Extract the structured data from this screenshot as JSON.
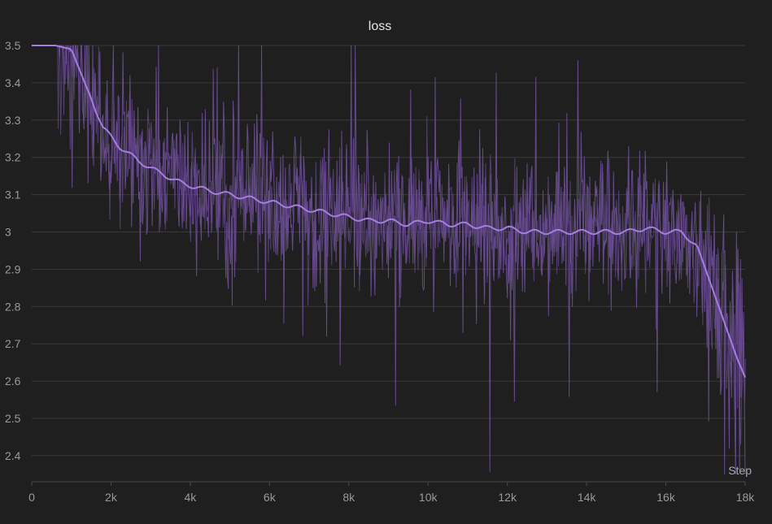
{
  "chart_data": {
    "type": "line",
    "title": "loss",
    "xlabel": "Step",
    "ylabel": "",
    "xlim": [
      0,
      18000
    ],
    "ylim": [
      2.33,
      3.5
    ],
    "x_ticks": [
      0,
      2000,
      4000,
      6000,
      8000,
      10000,
      12000,
      14000,
      16000,
      18000
    ],
    "x_tick_labels": [
      "0",
      "2k",
      "4k",
      "6k",
      "8k",
      "10k",
      "12k",
      "14k",
      "16k",
      "18k"
    ],
    "y_ticks": [
      2.4,
      2.5,
      2.6,
      2.7,
      2.8,
      2.9,
      3.0,
      3.1,
      3.2,
      3.3,
      3.4,
      3.5
    ],
    "y_tick_labels": [
      "2.4",
      "2.5",
      "2.6",
      "2.7",
      "2.8",
      "2.9",
      "3",
      "3.1",
      "3.2",
      "3.3",
      "3.4",
      "3.5"
    ],
    "grid": true,
    "colors": {
      "raw": "#6a4c93",
      "smoothed": "#a57de0",
      "background": "#1f1f1f"
    },
    "series": [
      {
        "role": "smoothed",
        "x": [
          0,
          600,
          1000,
          1300,
          1800,
          2200,
          2700,
          3200,
          3800,
          4500,
          5000,
          5500,
          6000,
          6500,
          7000,
          7500,
          8000,
          8500,
          9000,
          9500,
          10000,
          10500,
          11000,
          11500,
          12000,
          12500,
          13000,
          13500,
          14000,
          14500,
          15000,
          15500,
          16000,
          16400,
          16800,
          17000,
          17200,
          17400,
          17600,
          17800,
          18000
        ],
        "y": [
          3.5,
          3.5,
          3.49,
          3.41,
          3.28,
          3.23,
          3.19,
          3.16,
          3.13,
          3.11,
          3.1,
          3.09,
          3.08,
          3.07,
          3.06,
          3.05,
          3.04,
          3.03,
          3.03,
          3.02,
          3.03,
          3.02,
          3.02,
          3.01,
          3.01,
          3.0,
          3.0,
          3.0,
          3.0,
          3.0,
          3.0,
          3.01,
          3.0,
          3.0,
          2.96,
          2.9,
          2.84,
          2.78,
          2.72,
          2.66,
          2.61
        ]
      }
    ]
  }
}
